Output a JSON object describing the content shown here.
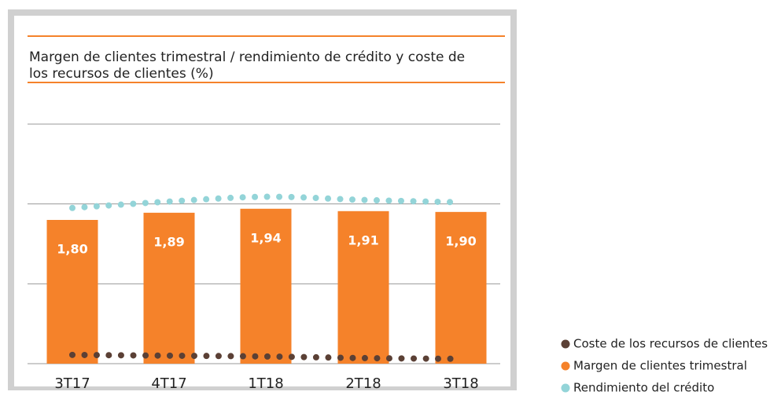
{
  "chart_data": {
    "type": "bar",
    "title_lines": [
      "Margen de clientes trimestral / rendimiento de crédito y coste de",
      "los recursos de clientes (%)"
    ],
    "categories": [
      "3T17",
      "4T17",
      "1T18",
      "2T18",
      "3T18"
    ],
    "series": [
      {
        "name": "Coste de los recursos de clientes",
        "type": "line",
        "color": "#5b4035",
        "values": [
          0.11,
          0.1,
          0.09,
          0.07,
          0.06
        ]
      },
      {
        "name": "Margen de clientes trimestral",
        "type": "bar",
        "color": "#f5822a",
        "values": [
          1.8,
          1.89,
          1.94,
          1.91,
          1.9
        ],
        "value_labels": [
          "1,80",
          "1,89",
          "1,94",
          "1,91",
          "1,90"
        ]
      },
      {
        "name": "Rendimiento del crédito",
        "type": "line",
        "color": "#93d4d8",
        "values": [
          1.95,
          2.03,
          2.09,
          2.05,
          2.02
        ]
      }
    ],
    "ylim": [
      0,
      3
    ],
    "gridlines": [
      0,
      1,
      2,
      3
    ],
    "grid": true,
    "legend": "bottom-right"
  }
}
